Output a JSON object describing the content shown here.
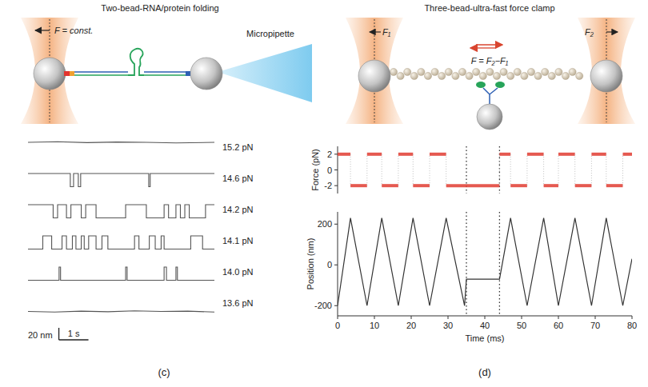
{
  "diagrams": [
    {
      "title": "Two-bead-RNA/protein folding",
      "force_label": "F = const.",
      "pipette_label": "Micropipette"
    },
    {
      "title": "Three-bead-ultra-fast force clamp",
      "left_force_label": "F₁",
      "right_force_label": "F₂",
      "net_force_label": "F = F₂−F₁"
    }
  ],
  "chart_data": [
    {
      "type": "line",
      "label": "(c)",
      "xlim": [
        0,
        6.3
      ],
      "ylim": [
        -12,
        40
      ],
      "tick_labels": false,
      "color": "#555555",
      "line_style": "step",
      "scale_bars": [
        {
          "value": 20,
          "label": "20 nm"
        },
        {
          "value": 1,
          "label": "1 s"
        }
      ],
      "series": [
        {
          "name": "15.2 pN",
          "line_style": "solid",
          "x": [
            0,
            1,
            2,
            3,
            4,
            5,
            6.3
          ],
          "values": [
            22,
            23,
            21.5,
            22.5,
            22,
            21,
            22
          ]
        },
        {
          "name": "14.6 pN",
          "x": [
            0,
            1.43,
            1.54,
            1.7,
            1.78,
            4.08,
            4.13
          ],
          "values": [
            22,
            0,
            22,
            0,
            22,
            0,
            22
          ]
        },
        {
          "name": "14.2 pN",
          "x": [
            0,
            0.85,
            1.0,
            1.3,
            1.45,
            1.8,
            1.95,
            2.3,
            3.3,
            4.0,
            4.6,
            4.75,
            5.0,
            5.15,
            5.3,
            5.45,
            6.0
          ],
          "values": [
            22,
            0,
            22,
            0,
            22,
            0,
            22,
            0,
            22,
            0,
            22,
            0,
            22,
            0,
            22,
            0,
            22
          ]
        },
        {
          "name": "14.1 pN",
          "x": [
            0,
            0.5,
            0.8,
            1.15,
            1.3,
            1.5,
            1.62,
            1.8,
            1.9,
            2.05,
            2.3,
            2.5,
            2.7,
            3.6,
            3.75,
            4.1,
            4.3,
            4.5,
            4.6,
            5.5,
            5.9
          ],
          "values": [
            0,
            22,
            0,
            22,
            0,
            22,
            0,
            22,
            0,
            22,
            0,
            22,
            0,
            22,
            0,
            22,
            0,
            22,
            0,
            22,
            0
          ]
        },
        {
          "name": "14.0 pN",
          "x": [
            0,
            1.05,
            1.1,
            3.3,
            3.35,
            4.6,
            4.68,
            5.0,
            5.05
          ],
          "values": [
            0,
            22,
            0,
            22,
            0,
            22,
            0,
            22,
            0
          ]
        },
        {
          "name": "13.6 pN",
          "line_style": "solid",
          "x": [
            0,
            0.9,
            1.8,
            2.7,
            3.6,
            4.5,
            5.4,
            6.3
          ],
          "values": [
            0,
            -1,
            0.5,
            -0.5,
            1,
            0,
            0.5,
            -1
          ]
        }
      ]
    },
    {
      "type": "line",
      "ylabel": "Force (pN)",
      "xlim": [
        0,
        80
      ],
      "ylim": [
        -3,
        3
      ],
      "yticks": [
        -2,
        0,
        2
      ],
      "tick_labels": "y",
      "color": "#e03c31",
      "line_style": "step",
      "vlines": [
        35,
        44
      ],
      "series": [
        {
          "x": [
            0,
            3.5,
            8,
            12,
            16.5,
            20.5,
            25,
            29.5,
            44,
            47,
            51.5,
            56,
            60,
            64.5,
            69,
            73,
            77.5
          ],
          "values": [
            2,
            -2,
            2,
            -2,
            2,
            -2,
            2,
            -2,
            2,
            -2,
            2,
            -2,
            2,
            -2,
            2,
            -2,
            2
          ]
        }
      ]
    },
    {
      "type": "line",
      "label": "(d)",
      "xlabel": "Time (ms)",
      "ylabel": "Position (nm)",
      "xlim": [
        0,
        80
      ],
      "ylim": [
        -250,
        260
      ],
      "xticks": [
        0,
        10,
        20,
        30,
        40,
        50,
        60,
        70,
        80
      ],
      "yticks": [
        -200,
        0,
        200
      ],
      "color": "#333333",
      "line_style": "solid",
      "vlines": [
        35,
        44
      ],
      "series": [
        {
          "x": [
            0,
            3.5,
            8,
            12,
            16.5,
            20.5,
            25,
            29.5,
            34.5,
            35,
            44,
            47,
            51.5,
            56,
            60,
            64.5,
            69,
            73,
            77.5,
            80
          ],
          "values": [
            -200,
            230,
            -200,
            230,
            -200,
            230,
            -200,
            230,
            -200,
            -70,
            -70,
            230,
            -200,
            230,
            -200,
            230,
            -200,
            230,
            -200,
            30
          ]
        }
      ]
    }
  ]
}
